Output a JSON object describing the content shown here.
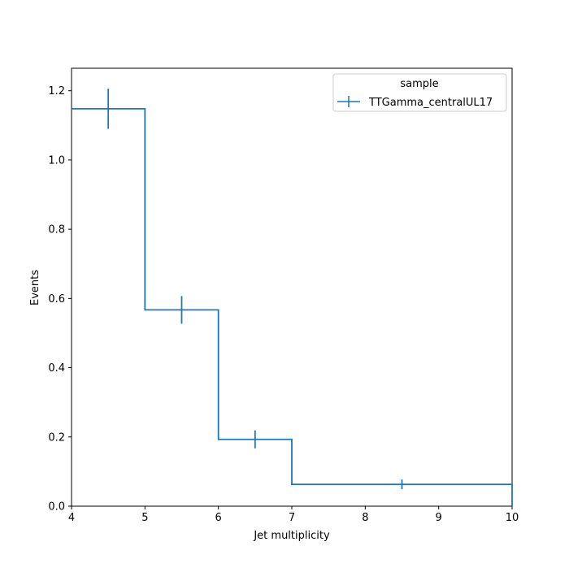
{
  "chart_data": {
    "type": "step-histogram",
    "title": "",
    "xlabel": "Jet multiplicity",
    "ylabel": "Events",
    "xlim": [
      4,
      10
    ],
    "ylim": [
      0,
      1.265
    ],
    "xticks": [
      "4",
      "5",
      "6",
      "7",
      "8",
      "9",
      "10"
    ],
    "yticks": [
      "0.0",
      "0.2",
      "0.4",
      "0.6",
      "0.8",
      "1.0",
      "1.2"
    ],
    "grid": false,
    "legend": {
      "title": "sample",
      "placement": "top-right"
    },
    "series": [
      {
        "name": "TTGamma_centralUL17",
        "color": "#1f77b4",
        "bins": [
          {
            "low": 4,
            "high": 5,
            "value": 1.148,
            "error": 0.058
          },
          {
            "low": 5,
            "high": 6,
            "value": 0.567,
            "error": 0.04
          },
          {
            "low": 6,
            "high": 7,
            "value": 0.193,
            "error": 0.026
          },
          {
            "low": 7,
            "high": 10,
            "value": 0.063,
            "error": 0.014
          }
        ]
      }
    ]
  }
}
